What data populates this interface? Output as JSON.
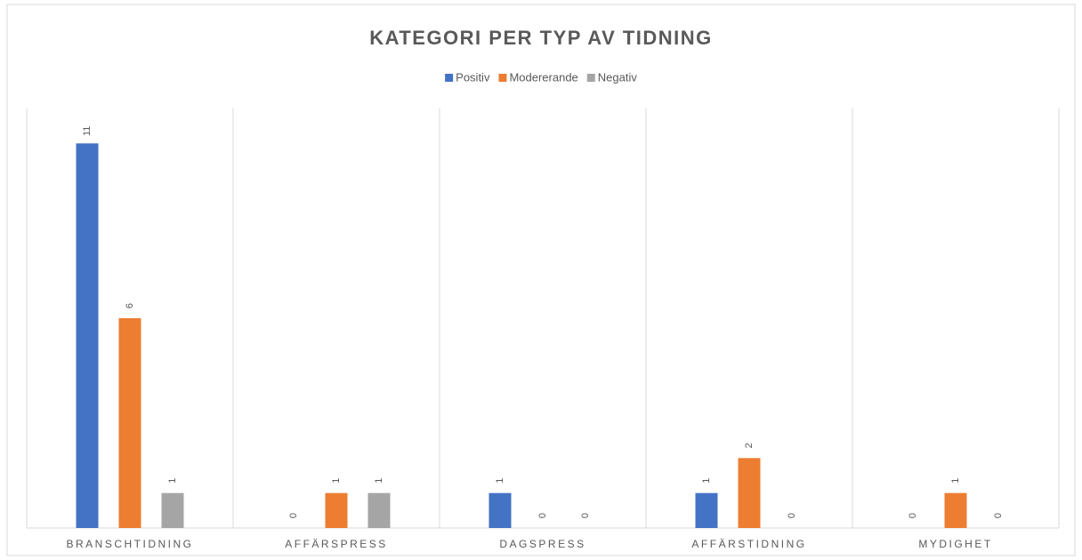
{
  "chart_data": {
    "type": "bar",
    "title": "KATEGORI PER TYP AV TIDNING",
    "categories": [
      "BRANSCHTIDNING",
      "AFFÄRSPRESS",
      "DAGSPRESS",
      "AFFÄRSTIDNING",
      "MYDIGHET"
    ],
    "series": [
      {
        "name": "Positiv",
        "color": "#4472c4",
        "values": [
          11,
          0,
          1,
          1,
          0
        ]
      },
      {
        "name": "Modererande",
        "color": "#ed7d31",
        "values": [
          6,
          1,
          0,
          2,
          1
        ]
      },
      {
        "name": "Negativ",
        "color": "#a5a5a5",
        "values": [
          1,
          1,
          0,
          0,
          0
        ]
      }
    ],
    "ylim": [
      0,
      12
    ],
    "legend": "top"
  }
}
